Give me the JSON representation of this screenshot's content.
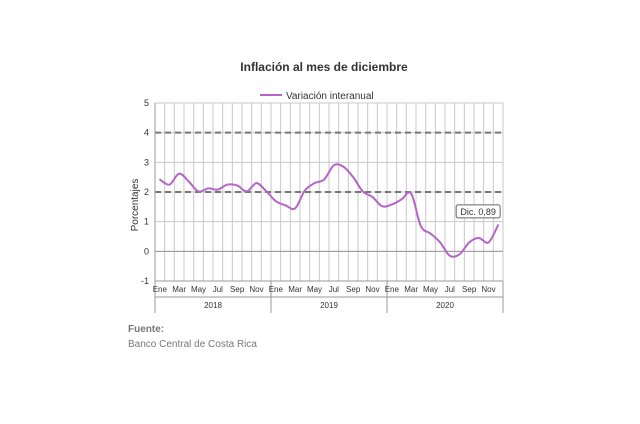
{
  "source": {
    "label": "Fuente:",
    "text": "Banco Central de Costa Rica"
  },
  "colors": {
    "series": "#b565c8",
    "bands": "#777777",
    "grid": "#c8c8c8",
    "axis": "#999999"
  },
  "chart_data": {
    "type": "line",
    "title": "Inflación al mes de diciembre",
    "xlabel": "",
    "ylabel": "Porcentajes",
    "ylim": [
      -1,
      5
    ],
    "yticks": [
      -1,
      0,
      1,
      2,
      3,
      4,
      5
    ],
    "grid": true,
    "legend_position": "top",
    "x": [
      "Ene 2018",
      "Feb 2018",
      "Mar 2018",
      "Abr 2018",
      "May 2018",
      "Jun 2018",
      "Jul 2018",
      "Ago 2018",
      "Sep 2018",
      "Oct 2018",
      "Nov 2018",
      "Dic 2018",
      "Ene 2019",
      "Feb 2019",
      "Mar 2019",
      "Abr 2019",
      "May 2019",
      "Jun 2019",
      "Jul 2019",
      "Ago 2019",
      "Sep 2019",
      "Oct 2019",
      "Nov 2019",
      "Dic 2019",
      "Ene 2020",
      "Feb 2020",
      "Mar 2020",
      "Abr 2020",
      "May 2020",
      "Jun 2020",
      "Jul 2020",
      "Ago 2020",
      "Sep 2020",
      "Oct 2020",
      "Nov 2020",
      "Dic 2020"
    ],
    "month_ticks": [
      "Ene",
      "Mar",
      "May",
      "Jul",
      "Sep",
      "Nov",
      "Ene",
      "Mar",
      "May",
      "Jul",
      "Sep",
      "Nov",
      "Ene",
      "Mar",
      "May",
      "Jul",
      "Sep",
      "Nov"
    ],
    "year_groups": [
      "2018",
      "2019",
      "2020"
    ],
    "series": [
      {
        "name": "Variación interanual",
        "values": [
          2.42,
          2.25,
          2.62,
          2.35,
          2.02,
          2.12,
          2.08,
          2.25,
          2.22,
          2.02,
          2.3,
          2.03,
          1.69,
          1.55,
          1.45,
          2.05,
          2.3,
          2.42,
          2.9,
          2.85,
          2.5,
          2.02,
          1.83,
          1.52,
          1.58,
          1.75,
          1.95,
          0.85,
          0.6,
          0.3,
          -0.15,
          -0.1,
          0.3,
          0.45,
          0.3,
          0.89
        ]
      }
    ],
    "reference_lines": [
      4,
      2
    ],
    "annotation": "Dic. 0,89"
  }
}
